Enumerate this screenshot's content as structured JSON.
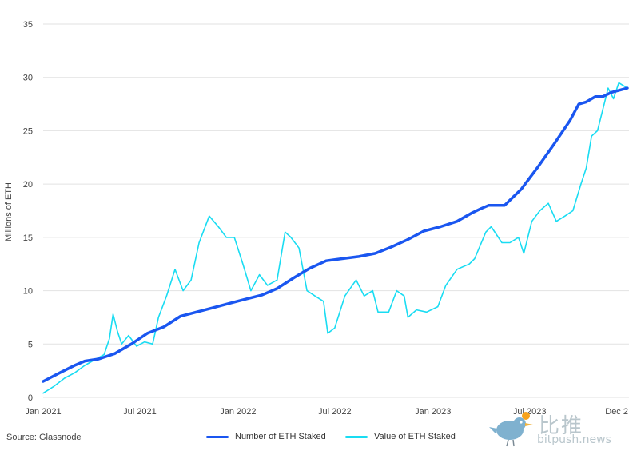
{
  "chart_data": {
    "type": "line",
    "ylabel": "Millions of ETH",
    "ylim": [
      0,
      35
    ],
    "yticks": [
      0,
      5,
      10,
      15,
      20,
      25,
      30,
      35
    ],
    "xlim": [
      "2021-01-01",
      "2023-12-31"
    ],
    "xticks": [
      {
        "date": "2021-01-01",
        "label": "Jan 2021"
      },
      {
        "date": "2021-07-01",
        "label": "Jul 2021"
      },
      {
        "date": "2022-01-01",
        "label": "Jan 2022"
      },
      {
        "date": "2022-07-01",
        "label": "Jul 2022"
      },
      {
        "date": "2023-01-01",
        "label": "Jan 2023"
      },
      {
        "date": "2023-07-01",
        "label": "Jul 2023"
      },
      {
        "date": "2023-12-31",
        "label": "Dec 2"
      }
    ],
    "grid": true,
    "legend_position": "bottom",
    "series": [
      {
        "name": "Number of ETH Staked",
        "color": "#1a56f0",
        "points": [
          [
            "2021-01-01",
            1.5
          ],
          [
            "2021-02-01",
            2.3
          ],
          [
            "2021-03-01",
            3.0
          ],
          [
            "2021-03-20",
            3.4
          ],
          [
            "2021-04-15",
            3.6
          ],
          [
            "2021-05-15",
            4.1
          ],
          [
            "2021-06-15",
            5.0
          ],
          [
            "2021-07-15",
            6.0
          ],
          [
            "2021-08-15",
            6.6
          ],
          [
            "2021-09-15",
            7.6
          ],
          [
            "2021-10-15",
            8.0
          ],
          [
            "2021-11-15",
            8.4
          ],
          [
            "2021-12-15",
            8.8
          ],
          [
            "2022-01-15",
            9.2
          ],
          [
            "2022-02-15",
            9.6
          ],
          [
            "2022-03-15",
            10.2
          ],
          [
            "2022-04-15",
            11.2
          ],
          [
            "2022-05-15",
            12.1
          ],
          [
            "2022-06-15",
            12.8
          ],
          [
            "2022-07-15",
            13.0
          ],
          [
            "2022-08-15",
            13.2
          ],
          [
            "2022-09-15",
            13.5
          ],
          [
            "2022-10-15",
            14.1
          ],
          [
            "2022-11-15",
            14.8
          ],
          [
            "2022-12-15",
            15.6
          ],
          [
            "2023-01-15",
            16.0
          ],
          [
            "2023-02-15",
            16.5
          ],
          [
            "2023-03-15",
            17.3
          ],
          [
            "2023-04-01",
            17.7
          ],
          [
            "2023-04-15",
            18.0
          ],
          [
            "2023-05-15",
            18.0
          ],
          [
            "2023-06-15",
            19.5
          ],
          [
            "2023-07-15",
            21.5
          ],
          [
            "2023-08-15",
            23.7
          ],
          [
            "2023-09-15",
            26.0
          ],
          [
            "2023-10-01",
            27.5
          ],
          [
            "2023-10-15",
            27.7
          ],
          [
            "2023-11-01",
            28.2
          ],
          [
            "2023-11-15",
            28.2
          ],
          [
            "2023-12-01",
            28.6
          ],
          [
            "2023-12-31",
            29.0
          ]
        ]
      },
      {
        "name": "Value of ETH Staked",
        "color": "#19dcf2",
        "points": [
          [
            "2021-01-01",
            0.4
          ],
          [
            "2021-01-20",
            1.0
          ],
          [
            "2021-02-10",
            1.8
          ],
          [
            "2021-03-01",
            2.3
          ],
          [
            "2021-03-20",
            3.0
          ],
          [
            "2021-04-10",
            3.6
          ],
          [
            "2021-04-25",
            4.0
          ],
          [
            "2021-05-05",
            5.5
          ],
          [
            "2021-05-12",
            7.8
          ],
          [
            "2021-05-20",
            6.2
          ],
          [
            "2021-05-28",
            5.0
          ],
          [
            "2021-06-10",
            5.8
          ],
          [
            "2021-06-25",
            4.8
          ],
          [
            "2021-07-10",
            5.2
          ],
          [
            "2021-07-25",
            5.0
          ],
          [
            "2021-08-05",
            7.5
          ],
          [
            "2021-08-20",
            9.5
          ],
          [
            "2021-09-05",
            12.0
          ],
          [
            "2021-09-20",
            10.0
          ],
          [
            "2021-10-05",
            11.0
          ],
          [
            "2021-10-20",
            14.5
          ],
          [
            "2021-11-08",
            17.0
          ],
          [
            "2021-11-25",
            16.0
          ],
          [
            "2021-12-10",
            15.0
          ],
          [
            "2021-12-25",
            15.0
          ],
          [
            "2022-01-10",
            12.5
          ],
          [
            "2022-01-25",
            10.0
          ],
          [
            "2022-02-10",
            11.5
          ],
          [
            "2022-02-25",
            10.5
          ],
          [
            "2022-03-15",
            11.0
          ],
          [
            "2022-03-30",
            15.5
          ],
          [
            "2022-04-10",
            15.0
          ],
          [
            "2022-04-25",
            14.0
          ],
          [
            "2022-05-10",
            10.0
          ],
          [
            "2022-05-25",
            9.5
          ],
          [
            "2022-06-10",
            9.0
          ],
          [
            "2022-06-18",
            6.0
          ],
          [
            "2022-07-01",
            6.5
          ],
          [
            "2022-07-20",
            9.5
          ],
          [
            "2022-08-10",
            11.0
          ],
          [
            "2022-08-25",
            9.5
          ],
          [
            "2022-09-10",
            10.0
          ],
          [
            "2022-09-20",
            8.0
          ],
          [
            "2022-10-10",
            8.0
          ],
          [
            "2022-10-25",
            10.0
          ],
          [
            "2022-11-08",
            9.5
          ],
          [
            "2022-11-15",
            7.5
          ],
          [
            "2022-12-01",
            8.2
          ],
          [
            "2022-12-20",
            8.0
          ],
          [
            "2023-01-10",
            8.5
          ],
          [
            "2023-01-25",
            10.5
          ],
          [
            "2023-02-15",
            12.0
          ],
          [
            "2023-03-10",
            12.5
          ],
          [
            "2023-03-20",
            13.0
          ],
          [
            "2023-04-10",
            15.5
          ],
          [
            "2023-04-20",
            16.0
          ],
          [
            "2023-05-10",
            14.5
          ],
          [
            "2023-05-25",
            14.5
          ],
          [
            "2023-06-10",
            15.0
          ],
          [
            "2023-06-20",
            13.5
          ],
          [
            "2023-07-05",
            16.5
          ],
          [
            "2023-07-20",
            17.5
          ],
          [
            "2023-08-05",
            18.2
          ],
          [
            "2023-08-20",
            16.5
          ],
          [
            "2023-09-05",
            17.0
          ],
          [
            "2023-09-20",
            17.5
          ],
          [
            "2023-10-05",
            20.0
          ],
          [
            "2023-10-15",
            21.5
          ],
          [
            "2023-10-25",
            24.5
          ],
          [
            "2023-11-05",
            25.0
          ],
          [
            "2023-11-15",
            27.0
          ],
          [
            "2023-11-25",
            29.0
          ],
          [
            "2023-12-05",
            28.0
          ],
          [
            "2023-12-15",
            29.5
          ],
          [
            "2023-12-31",
            29.0
          ]
        ]
      }
    ]
  },
  "footer": {
    "source": "Source: Glassnode"
  },
  "legend": {
    "staked_number_label": "Number of ETH Staked",
    "staked_value_label": "Value of ETH Staked"
  },
  "watermark": {
    "cn": "比推",
    "en": "bitpush.news"
  }
}
